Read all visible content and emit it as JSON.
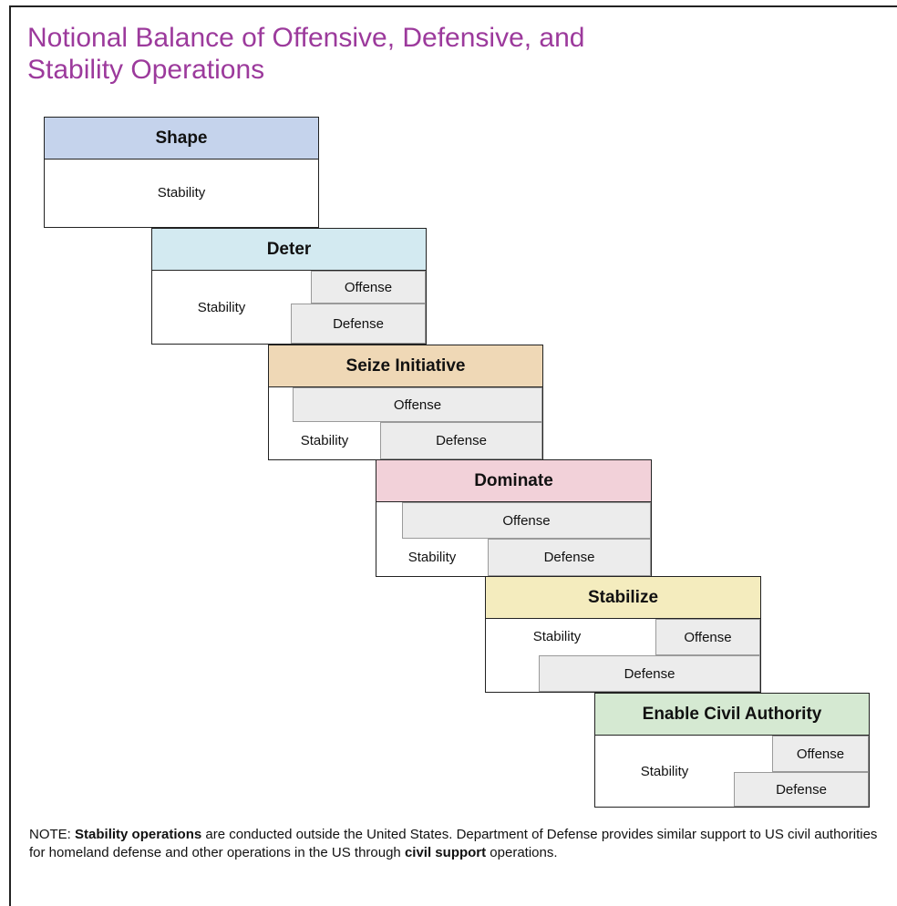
{
  "title": "Notional Balance of Offensive, Defensive, and Stability Operations",
  "phases": {
    "shape": {
      "name": "Shape",
      "color": "#c5d3ec",
      "stability": "Stability"
    },
    "deter": {
      "name": "Deter",
      "color": "#d3eaf1",
      "stability": "Stability",
      "offense": "Offense",
      "defense": "Defense"
    },
    "seize": {
      "name": "Seize Initiative",
      "color": "#efd8b6",
      "stability": "Stability",
      "offense": "Offense",
      "defense": "Defense"
    },
    "dominate": {
      "name": "Dominate",
      "color": "#f2d1d9",
      "stability": "Stability",
      "offense": "Offense",
      "defense": "Defense"
    },
    "stabilize": {
      "name": "Stabilize",
      "color": "#f4ecbe",
      "stability": "Stability",
      "offense": "Offense",
      "defense": "Defense"
    },
    "enable": {
      "name": "Enable Civil Authority",
      "color": "#d5e9d2",
      "stability": "Stability",
      "offense": "Offense",
      "defense": "Defense"
    }
  },
  "note": {
    "prefix": "NOTE:  ",
    "bold1": "Stability operations",
    "text1": " are conducted outside the United States. Department of Defense provides similar support to US civil authorities for homeland defense and other operations in the US through ",
    "bold2": "civil support",
    "text2": " operations."
  }
}
